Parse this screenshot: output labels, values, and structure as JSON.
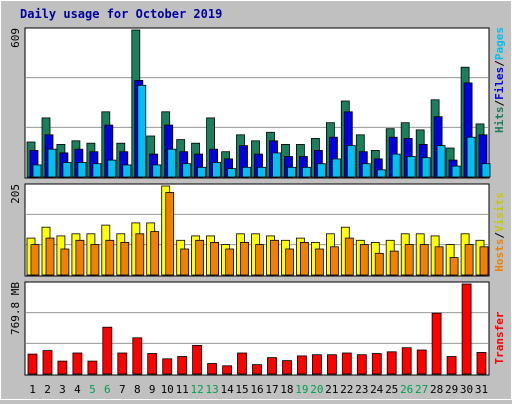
{
  "title": "Daily usage for October 2019",
  "colors": {
    "background": "#c0c0c0",
    "plot_bg": "#ffffff",
    "hits": "#1a7f5a",
    "files": "#0000e0",
    "pages": "#00c0f0",
    "visits": "#ffff00",
    "hosts": "#f08000",
    "transfer": "#ff0000",
    "title": "#0000a0",
    "weekend_label": "#00a050"
  },
  "chart_data": [
    {
      "type": "bar",
      "panel": "hits-files-pages",
      "ylabel_parts": [
        "Hits",
        "Files",
        "Pages"
      ],
      "max_label": "609",
      "ylim": [
        0,
        609
      ],
      "categories": [
        "1",
        "2",
        "3",
        "4",
        "5",
        "6",
        "7",
        "8",
        "9",
        "10",
        "11",
        "12",
        "13",
        "14",
        "15",
        "16",
        "17",
        "18",
        "19",
        "20",
        "21",
        "22",
        "23",
        "24",
        "25",
        "26",
        "27",
        "28",
        "29",
        "30",
        "31"
      ],
      "weekend_days": [
        "5",
        "6",
        "12",
        "13",
        "19",
        "20",
        "26",
        "27"
      ],
      "series": [
        {
          "name": "Hits",
          "values": [
            145,
            245,
            135,
            150,
            140,
            270,
            140,
            609,
            170,
            270,
            155,
            140,
            245,
            105,
            175,
            150,
            185,
            135,
            135,
            160,
            225,
            315,
            175,
            110,
            200,
            225,
            195,
            320,
            120,
            455,
            220
          ]
        },
        {
          "name": "Files",
          "values": [
            110,
            175,
            100,
            115,
            105,
            215,
            105,
            400,
            95,
            215,
            105,
            95,
            115,
            75,
            130,
            95,
            150,
            85,
            85,
            110,
            165,
            270,
            105,
            75,
            165,
            160,
            135,
            250,
            70,
            390,
            175
          ]
        },
        {
          "name": "Pages",
          "values": [
            50,
            115,
            60,
            60,
            55,
            70,
            50,
            380,
            50,
            115,
            55,
            40,
            60,
            35,
            40,
            40,
            100,
            40,
            40,
            55,
            75,
            130,
            55,
            30,
            95,
            85,
            80,
            130,
            45,
            165,
            55
          ]
        }
      ]
    },
    {
      "type": "bar",
      "panel": "hosts-visits",
      "ylabel_parts": [
        "Hosts",
        "Visits"
      ],
      "max_label": "205",
      "ylim": [
        0,
        205
      ],
      "categories": [
        "1",
        "2",
        "3",
        "4",
        "5",
        "6",
        "7",
        "8",
        "9",
        "10",
        "11",
        "12",
        "13",
        "14",
        "15",
        "16",
        "17",
        "18",
        "19",
        "20",
        "21",
        "22",
        "23",
        "24",
        "25",
        "26",
        "27",
        "28",
        "29",
        "30",
        "31"
      ],
      "series": [
        {
          "name": "Visits",
          "values": [
            85,
            110,
            90,
            95,
            95,
            115,
            95,
            120,
            120,
            205,
            80,
            90,
            90,
            70,
            95,
            95,
            90,
            80,
            85,
            75,
            95,
            110,
            80,
            75,
            80,
            95,
            95,
            90,
            70,
            95,
            80
          ]
        },
        {
          "name": "Hosts",
          "values": [
            70,
            85,
            60,
            80,
            70,
            80,
            75,
            95,
            100,
            190,
            60,
            80,
            75,
            60,
            75,
            70,
            80,
            60,
            75,
            60,
            65,
            85,
            70,
            50,
            55,
            70,
            70,
            65,
            40,
            70,
            65
          ]
        }
      ]
    },
    {
      "type": "bar",
      "panel": "transfer",
      "ylabel": "Transfer",
      "max_label": "769.8 MB",
      "ylim": [
        0,
        769.8
      ],
      "categories": [
        "1",
        "2",
        "3",
        "4",
        "5",
        "6",
        "7",
        "8",
        "9",
        "10",
        "11",
        "12",
        "13",
        "14",
        "15",
        "16",
        "17",
        "18",
        "19",
        "20",
        "21",
        "22",
        "23",
        "24",
        "25",
        "26",
        "27",
        "28",
        "29",
        "30",
        "31"
      ],
      "series": [
        {
          "name": "Transfer",
          "values": [
            170,
            200,
            110,
            180,
            110,
            400,
            180,
            310,
            175,
            130,
            150,
            245,
            90,
            70,
            180,
            80,
            140,
            115,
            155,
            165,
            165,
            180,
            165,
            175,
            190,
            225,
            205,
            520,
            150,
            769.8,
            185
          ]
        }
      ]
    }
  ]
}
